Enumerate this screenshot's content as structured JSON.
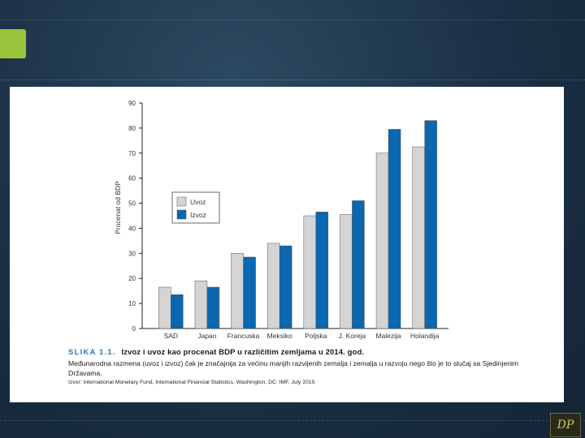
{
  "chart_data": {
    "type": "bar",
    "ylabel": "Procenat od BDP",
    "ylim": [
      0,
      90
    ],
    "yticks": [
      0,
      10,
      20,
      30,
      40,
      50,
      60,
      70,
      80,
      90
    ],
    "categories": [
      "SAD",
      "Japan",
      "Francuska",
      "Meksiko",
      "Poljska",
      "J. Koreja",
      "Malezija",
      "Holandija"
    ],
    "series": [
      {
        "name": "Uvoz",
        "color": "#d4d4d4",
        "values": [
          16.5,
          19,
          30,
          34,
          45,
          45.5,
          70,
          72.5
        ]
      },
      {
        "name": "Izvoz",
        "color": "#0a67b0",
        "values": [
          13.5,
          16.5,
          28.5,
          33,
          46.5,
          51,
          79.5,
          83
        ]
      }
    ],
    "legend_position": "top-left"
  },
  "caption": {
    "label": "SLIKA 1.1.",
    "title": "Izvoz i uvoz kao procenat BDP u različitim zemljama u 2014. god.",
    "text": "Međunarodna razmena (uvoz i izvoz) čak je značajnija za većinu manjih razvijenih zemalja i zemalja u razvoju nego što je to slučaj sa Sjedinjenim Državama.",
    "source": "Izvor: International Monetary Fund, International Financial Statistics, Washington, DC: IMF, July 2015"
  },
  "logo": {
    "text": "DP"
  }
}
